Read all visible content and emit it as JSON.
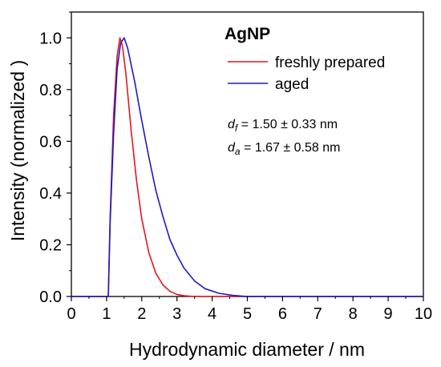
{
  "chart_data": {
    "type": "line",
    "xlabel": "Hydrodynamic diameter / nm",
    "ylabel": "Intensity (normalized )",
    "xlim": [
      0,
      10
    ],
    "ylim": [
      0,
      1.1
    ],
    "xticks": [
      "0",
      "1",
      "2",
      "3",
      "4",
      "5",
      "6",
      "7",
      "8",
      "9",
      "10"
    ],
    "yticks": [
      "0.0",
      "0.2",
      "0.4",
      "0.6",
      "0.8",
      "1.0"
    ],
    "grid": false,
    "legend": {
      "title": "AgNP",
      "placement": "top-right",
      "entries": [
        "freshly prepared",
        "aged"
      ]
    },
    "annotations": {
      "df": {
        "var": "d",
        "sub": "f",
        "text": " = 1.50 ± 0.33 nm"
      },
      "da": {
        "var": "d",
        "sub": "a",
        "text": " = 1.67 ± 0.58 nm"
      }
    },
    "series": [
      {
        "name": "freshly prepared",
        "color": "#e8141b",
        "points": [
          [
            0,
            0
          ],
          [
            1.05,
            0
          ],
          [
            1.1,
            0.3
          ],
          [
            1.2,
            0.7
          ],
          [
            1.3,
            0.93
          ],
          [
            1.38,
            1.0
          ],
          [
            1.45,
            0.97
          ],
          [
            1.55,
            0.86
          ],
          [
            1.7,
            0.64
          ],
          [
            1.85,
            0.45
          ],
          [
            2.0,
            0.3
          ],
          [
            2.2,
            0.17
          ],
          [
            2.4,
            0.09
          ],
          [
            2.6,
            0.045
          ],
          [
            2.8,
            0.02
          ],
          [
            3.0,
            0.008
          ],
          [
            3.2,
            0.003
          ],
          [
            3.5,
            0.0
          ],
          [
            10,
            0
          ]
        ]
      },
      {
        "name": "aged",
        "color": "#1a1ac8",
        "points": [
          [
            0,
            0
          ],
          [
            1.05,
            0
          ],
          [
            1.1,
            0.28
          ],
          [
            1.2,
            0.63
          ],
          [
            1.3,
            0.88
          ],
          [
            1.4,
            0.98
          ],
          [
            1.5,
            1.0
          ],
          [
            1.6,
            0.96
          ],
          [
            1.8,
            0.83
          ],
          [
            2.0,
            0.68
          ],
          [
            2.2,
            0.54
          ],
          [
            2.4,
            0.41
          ],
          [
            2.6,
            0.31
          ],
          [
            2.8,
            0.22
          ],
          [
            3.0,
            0.16
          ],
          [
            3.2,
            0.11
          ],
          [
            3.5,
            0.06
          ],
          [
            3.8,
            0.03
          ],
          [
            4.2,
            0.012
          ],
          [
            4.6,
            0.004
          ],
          [
            5.0,
            0.0
          ],
          [
            10,
            0
          ]
        ]
      }
    ]
  }
}
